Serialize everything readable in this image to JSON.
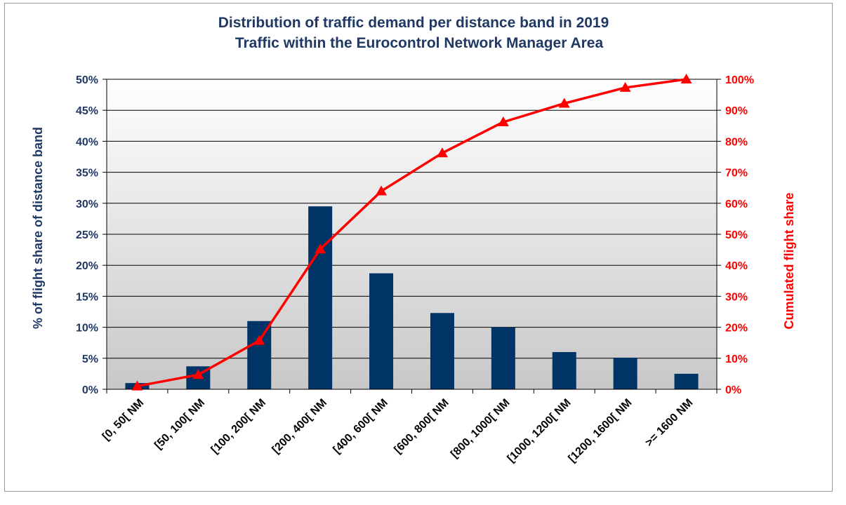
{
  "chart_data": {
    "type": "bar",
    "title_line1": "Distribution of traffic demand per distance band in 2019",
    "title_line2": "Traffic within the Eurocontrol Network Manager Area",
    "ylabel_left": "% of flight share of distance band",
    "ylabel_right": "Cumulated flight share",
    "categories": [
      "[0, 50[ NM",
      "[50, 100[ NM",
      "[100, 200[ NM",
      "[200, 400[ NM",
      "[400, 600[ NM",
      "[600, 800[ NM",
      "[800, 1000[ NM",
      "[1000, 1200[ NM",
      "[1200, 1600[ NM",
      ">= 1600 NM"
    ],
    "ylim_left": [
      0,
      50
    ],
    "yticks_left": [
      "0%",
      "5%",
      "10%",
      "15%",
      "20%",
      "25%",
      "30%",
      "35%",
      "40%",
      "45%",
      "50%"
    ],
    "ylim_right": [
      0,
      100
    ],
    "yticks_right": [
      "0%",
      "10%",
      "20%",
      "30%",
      "40%",
      "50%",
      "60%",
      "70%",
      "80%",
      "90%",
      "100%"
    ],
    "series": [
      {
        "type": "bar",
        "axis": "left",
        "color": "#003366",
        "values": [
          1.0,
          3.7,
          11.0,
          29.5,
          18.7,
          12.3,
          10.0,
          6.0,
          5.1,
          2.5
        ]
      },
      {
        "type": "line",
        "axis": "right",
        "color": "#ff0000",
        "marker": "triangle",
        "values": [
          1.0,
          4.7,
          15.7,
          45.2,
          63.9,
          76.2,
          86.2,
          92.2,
          97.3,
          100.0
        ]
      }
    ],
    "grid": true,
    "background_gradient": [
      "#ffffff",
      "#c8c8c8"
    ]
  }
}
